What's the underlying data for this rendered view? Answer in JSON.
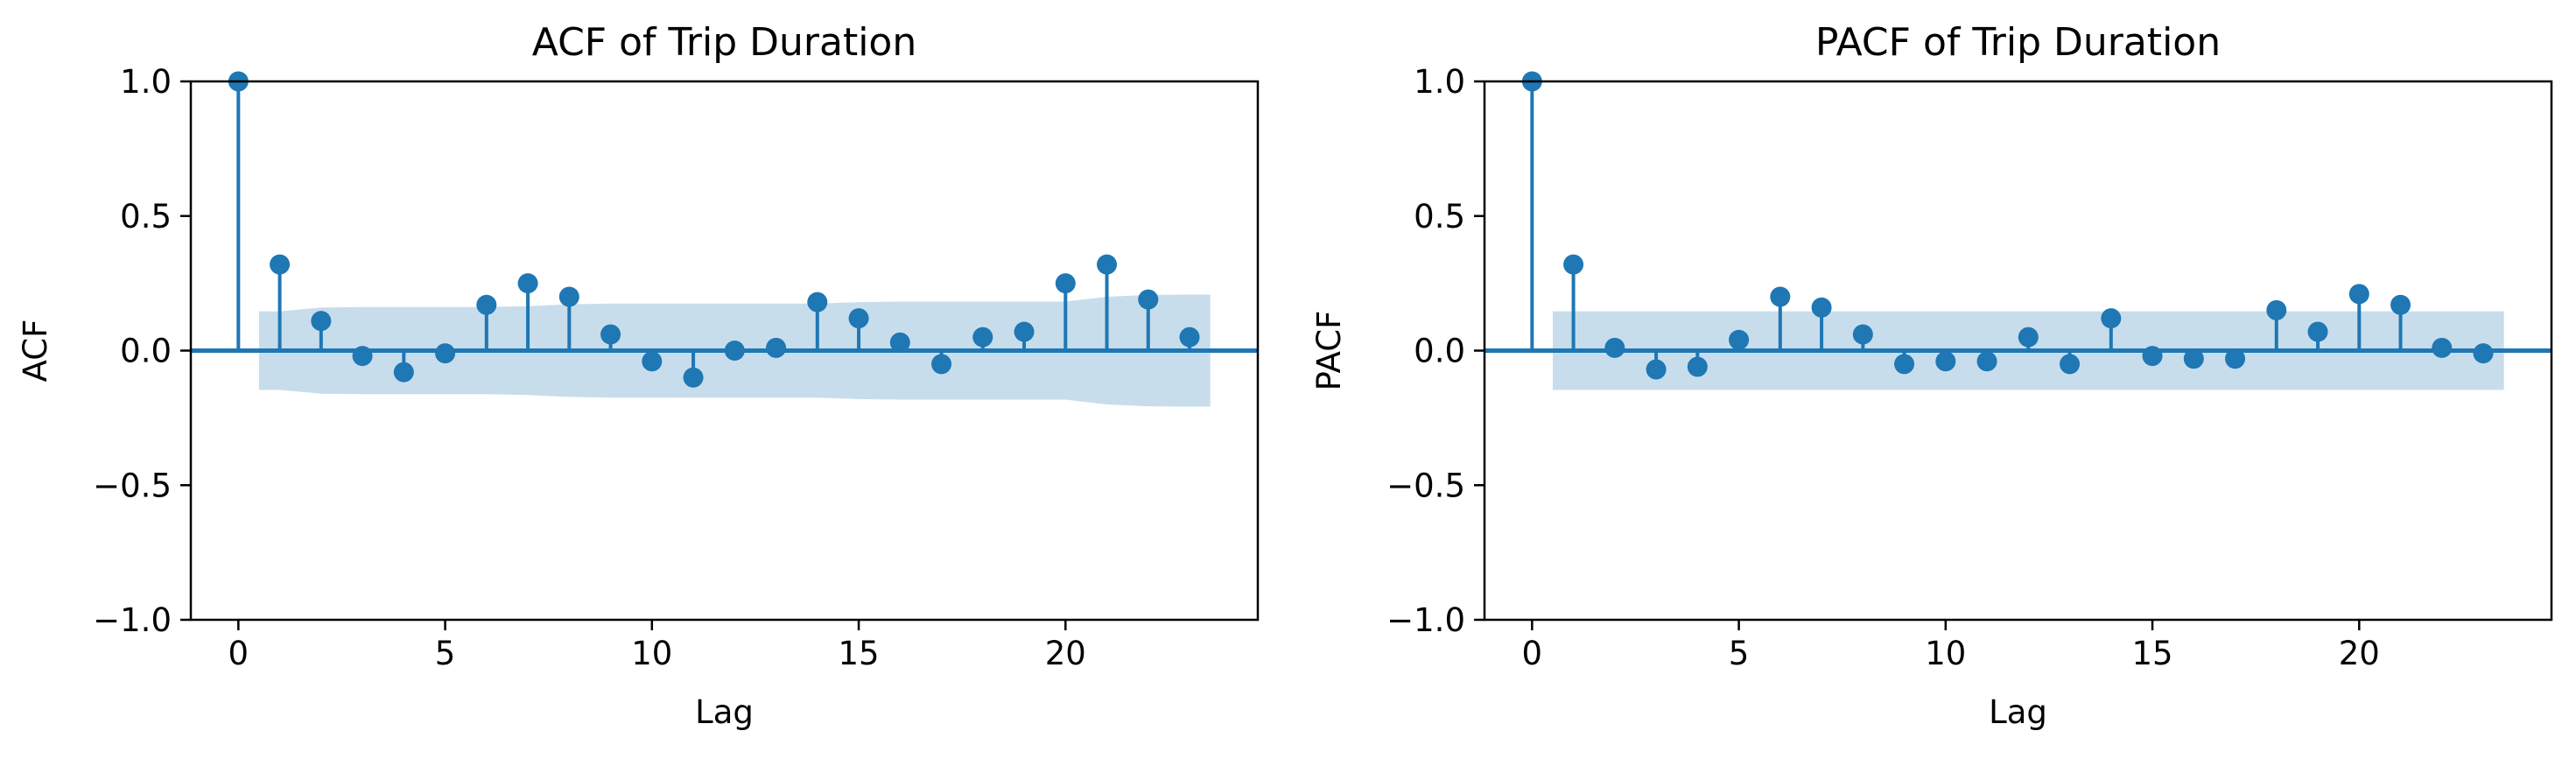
{
  "colors": {
    "series": "#1f77b4",
    "band": "#1f77b4",
    "axis": "#000000",
    "background": "#ffffff"
  },
  "chart_data": [
    {
      "type": "stem",
      "title": "ACF of Trip Duration",
      "xlabel": "Lag",
      "ylabel": "ACF",
      "xlim": [
        -1.15,
        24.65
      ],
      "ylim": [
        -1.0,
        1.0
      ],
      "xticks": [
        0,
        5,
        10,
        15,
        20
      ],
      "yticks": [
        -1.0,
        -0.5,
        0.0,
        0.5,
        1.0
      ],
      "ytick_labels": [
        "−1.0",
        "−0.5",
        "0.0",
        "0.5",
        "1.0"
      ],
      "grid": false,
      "lags": [
        0,
        1,
        2,
        3,
        4,
        5,
        6,
        7,
        8,
        9,
        10,
        11,
        12,
        13,
        14,
        15,
        16,
        17,
        18,
        19,
        20,
        21,
        22,
        23
      ],
      "values": [
        1.0,
        0.32,
        0.11,
        -0.02,
        -0.08,
        -0.01,
        0.17,
        0.25,
        0.2,
        0.06,
        -0.04,
        -0.1,
        0.0,
        0.01,
        0.18,
        0.12,
        0.03,
        -0.05,
        0.05,
        0.07,
        0.25,
        0.32,
        0.19,
        0.05
      ],
      "confidence_band": {
        "lags": [
          0.5,
          1,
          2,
          3,
          4,
          5,
          6,
          7,
          8,
          9,
          10,
          11,
          12,
          13,
          14,
          15,
          16,
          17,
          18,
          19,
          20,
          21,
          22,
          23,
          23.5
        ],
        "upper": [
          0.146,
          0.146,
          0.16,
          0.162,
          0.162,
          0.162,
          0.162,
          0.165,
          0.172,
          0.175,
          0.175,
          0.175,
          0.175,
          0.175,
          0.175,
          0.18,
          0.182,
          0.182,
          0.182,
          0.182,
          0.182,
          0.2,
          0.207,
          0.208,
          0.208
        ],
        "lower": [
          -0.146,
          -0.146,
          -0.16,
          -0.162,
          -0.162,
          -0.162,
          -0.162,
          -0.165,
          -0.172,
          -0.175,
          -0.175,
          -0.175,
          -0.175,
          -0.175,
          -0.175,
          -0.18,
          -0.182,
          -0.182,
          -0.182,
          -0.182,
          -0.182,
          -0.2,
          -0.207,
          -0.208,
          -0.208
        ]
      }
    },
    {
      "type": "stem",
      "title": "PACF of Trip Duration",
      "xlabel": "Lag",
      "ylabel": "PACF",
      "xlim": [
        -1.15,
        24.65
      ],
      "ylim": [
        -1.0,
        1.0
      ],
      "xticks": [
        0,
        5,
        10,
        15,
        20
      ],
      "yticks": [
        -1.0,
        -0.5,
        0.0,
        0.5,
        1.0
      ],
      "ytick_labels": [
        "−1.0",
        "−0.5",
        "0.0",
        "0.5",
        "1.0"
      ],
      "grid": false,
      "lags": [
        0,
        1,
        2,
        3,
        4,
        5,
        6,
        7,
        8,
        9,
        10,
        11,
        12,
        13,
        14,
        15,
        16,
        17,
        18,
        19,
        20,
        21,
        22,
        23
      ],
      "values": [
        1.0,
        0.32,
        0.01,
        -0.07,
        -0.06,
        0.04,
        0.2,
        0.16,
        0.06,
        -0.05,
        -0.04,
        -0.04,
        0.05,
        -0.05,
        0.12,
        -0.02,
        -0.03,
        -0.03,
        0.15,
        0.07,
        0.21,
        0.17,
        0.01,
        -0.01
      ],
      "confidence_band": {
        "lags": [
          0.5,
          23.5
        ],
        "upper": [
          0.146,
          0.146
        ],
        "lower": [
          -0.146,
          -0.146
        ]
      }
    }
  ]
}
